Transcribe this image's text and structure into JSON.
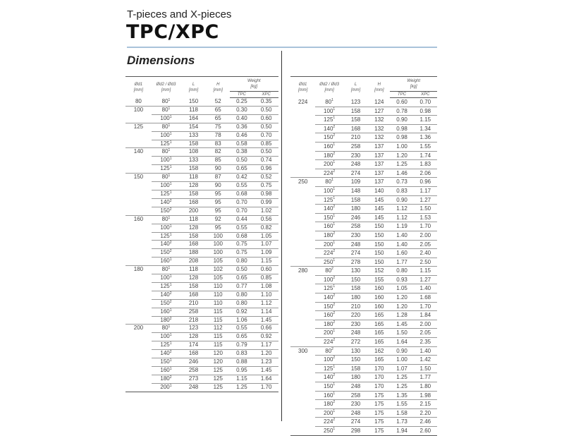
{
  "header": {
    "subtitle": "T-pieces and X-pieces",
    "title": "TPC/XPC",
    "section": "Dimensions"
  },
  "columns": {
    "d1": "Ød1",
    "d1_unit": "[mm]",
    "d2": "Ød2 / Ød3",
    "d2_unit": "[mm]",
    "L": "L",
    "L_unit": "[mm]",
    "H": "H",
    "H_unit": "[mm]",
    "weight": "Weight",
    "weight_unit": "[kg]",
    "tpc": "TPC",
    "xpc": "XPC"
  },
  "colors": {
    "rule": "#a9c3da",
    "text": "#444444"
  },
  "left_table": [
    [
      "80",
      "80",
      "1",
      "150",
      "52",
      "0.25",
      "0.35"
    ],
    [
      "100",
      "80",
      "1",
      "118",
      "65",
      "0.30",
      "0.50"
    ],
    [
      "",
      "100",
      "1",
      "164",
      "65",
      "0.40",
      "0.60"
    ],
    [
      "125",
      "80",
      "1",
      "154",
      "75",
      "0.36",
      "0.50"
    ],
    [
      "",
      "100",
      "1",
      "133",
      "78",
      "0.46",
      "0.70"
    ],
    [
      "",
      "125",
      "1",
      "158",
      "83",
      "0.58",
      "0.85"
    ],
    [
      "140",
      "80",
      "1",
      "108",
      "82",
      "0.38",
      "0.50"
    ],
    [
      "",
      "100",
      "1",
      "133",
      "85",
      "0.50",
      "0.74"
    ],
    [
      "",
      "125",
      "1",
      "158",
      "90",
      "0.65",
      "0.96"
    ],
    [
      "150",
      "80",
      "1",
      "118",
      "87",
      "0.42",
      "0.52"
    ],
    [
      "",
      "100",
      "1",
      "128",
      "90",
      "0.55",
      "0.75"
    ],
    [
      "",
      "125",
      "1",
      "158",
      "95",
      "0.68",
      "0.98"
    ],
    [
      "",
      "140",
      "2",
      "168",
      "95",
      "0.70",
      "0.99"
    ],
    [
      "",
      "150",
      "2",
      "200",
      "95",
      "0.70",
      "1.02"
    ],
    [
      "160",
      "80",
      "1",
      "118",
      "92",
      "0.44",
      "0.56"
    ],
    [
      "",
      "100",
      "1",
      "128",
      "95",
      "0.55",
      "0.82"
    ],
    [
      "",
      "125",
      "1",
      "158",
      "100",
      "0.68",
      "1.05"
    ],
    [
      "",
      "140",
      "2",
      "168",
      "100",
      "0.75",
      "1.07"
    ],
    [
      "",
      "150",
      "2",
      "188",
      "100",
      "0.75",
      "1.09"
    ],
    [
      "",
      "160",
      "1",
      "208",
      "105",
      "0.80",
      "1.15"
    ],
    [
      "180",
      "80",
      "1",
      "118",
      "102",
      "0.50",
      "0.60"
    ],
    [
      "",
      "100",
      "1",
      "128",
      "105",
      "0.65",
      "0.85"
    ],
    [
      "",
      "125",
      "1",
      "158",
      "110",
      "0.77",
      "1.08"
    ],
    [
      "",
      "140",
      "2",
      "168",
      "110",
      "0.80",
      "1.10"
    ],
    [
      "",
      "150",
      "2",
      "210",
      "110",
      "0.80",
      "1.12"
    ],
    [
      "",
      "160",
      "1",
      "258",
      "115",
      "0.92",
      "1.14"
    ],
    [
      "",
      "180",
      "2",
      "218",
      "115",
      "1.06",
      "1.45"
    ],
    [
      "200",
      "80",
      "1",
      "123",
      "112",
      "0.55",
      "0.66"
    ],
    [
      "",
      "100",
      "1",
      "128",
      "115",
      "0.65",
      "0.92"
    ],
    [
      "",
      "125",
      "1",
      "174",
      "115",
      "0.79",
      "1.17"
    ],
    [
      "",
      "140",
      "2",
      "168",
      "120",
      "0.83",
      "1.20"
    ],
    [
      "",
      "150",
      "1",
      "246",
      "120",
      "0.88",
      "1.23"
    ],
    [
      "",
      "160",
      "1",
      "258",
      "125",
      "0.95",
      "1.45"
    ],
    [
      "",
      "180",
      "2",
      "273",
      "125",
      "1.15",
      "1.64"
    ],
    [
      "",
      "200",
      "1",
      "248",
      "125",
      "1.25",
      "1.70"
    ]
  ],
  "right_table": [
    [
      "224",
      "80",
      "1",
      "123",
      "124",
      "0.60",
      "0.70"
    ],
    [
      "",
      "100",
      "1",
      "158",
      "127",
      "0.78",
      "0.98"
    ],
    [
      "",
      "125",
      "1",
      "158",
      "132",
      "0.90",
      "1.15"
    ],
    [
      "",
      "140",
      "2",
      "168",
      "132",
      "0.98",
      "1.34"
    ],
    [
      "",
      "150",
      "2",
      "210",
      "132",
      "0.98",
      "1.36"
    ],
    [
      "",
      "160",
      "1",
      "258",
      "137",
      "1.00",
      "1.55"
    ],
    [
      "",
      "180",
      "2",
      "230",
      "137",
      "1.20",
      "1.74"
    ],
    [
      "",
      "200",
      "1",
      "248",
      "137",
      "1.25",
      "1.83"
    ],
    [
      "",
      "224",
      "2",
      "274",
      "137",
      "1.46",
      "2.06"
    ],
    [
      "250",
      "80",
      "1",
      "109",
      "137",
      "0.73",
      "0.96"
    ],
    [
      "",
      "100",
      "1",
      "148",
      "140",
      "0.83",
      "1.17"
    ],
    [
      "",
      "125",
      "1",
      "158",
      "145",
      "0.90",
      "1.27"
    ],
    [
      "",
      "140",
      "2",
      "180",
      "145",
      "1.12",
      "1.50"
    ],
    [
      "",
      "150",
      "1",
      "246",
      "145",
      "1.12",
      "1.53"
    ],
    [
      "",
      "160",
      "1",
      "258",
      "150",
      "1.19",
      "1.70"
    ],
    [
      "",
      "180",
      "2",
      "230",
      "150",
      "1.40",
      "2.00"
    ],
    [
      "",
      "200",
      "1",
      "248",
      "150",
      "1.40",
      "2.05"
    ],
    [
      "",
      "224",
      "2",
      "274",
      "150",
      "1.60",
      "2.40"
    ],
    [
      "",
      "250",
      "1",
      "278",
      "150",
      "1.77",
      "2.50"
    ],
    [
      "280",
      "80",
      "2",
      "130",
      "152",
      "0.80",
      "1.15"
    ],
    [
      "",
      "100",
      "2",
      "150",
      "155",
      "0.93",
      "1.27"
    ],
    [
      "",
      "125",
      "1",
      "158",
      "160",
      "1.05",
      "1.40"
    ],
    [
      "",
      "140",
      "2",
      "180",
      "160",
      "1.20",
      "1.68"
    ],
    [
      "",
      "150",
      "2",
      "210",
      "160",
      "1.20",
      "1.70"
    ],
    [
      "",
      "160",
      "2",
      "220",
      "165",
      "1.28",
      "1.84"
    ],
    [
      "",
      "180",
      "2",
      "230",
      "165",
      "1.45",
      "2.00"
    ],
    [
      "",
      "200",
      "1",
      "248",
      "165",
      "1.50",
      "2.05"
    ],
    [
      "",
      "224",
      "2",
      "272",
      "165",
      "1.64",
      "2.35"
    ],
    [
      "300",
      "80",
      "2",
      "130",
      "162",
      "0.90",
      "1.40"
    ],
    [
      "",
      "100",
      "2",
      "150",
      "165",
      "1.00",
      "1.42"
    ],
    [
      "",
      "125",
      "1",
      "158",
      "170",
      "1.07",
      "1.50"
    ],
    [
      "",
      "140",
      "2",
      "180",
      "170",
      "1.25",
      "1.77"
    ],
    [
      "",
      "150",
      "1",
      "248",
      "170",
      "1.25",
      "1.80"
    ],
    [
      "",
      "160",
      "1",
      "258",
      "175",
      "1.35",
      "1.98"
    ],
    [
      "",
      "180",
      "2",
      "230",
      "175",
      "1.55",
      "2.15"
    ],
    [
      "",
      "200",
      "1",
      "248",
      "175",
      "1.58",
      "2.20"
    ],
    [
      "",
      "224",
      "2",
      "274",
      "175",
      "1.73",
      "2.46"
    ],
    [
      "",
      "250",
      "1",
      "298",
      "175",
      "1.94",
      "2.60"
    ]
  ]
}
